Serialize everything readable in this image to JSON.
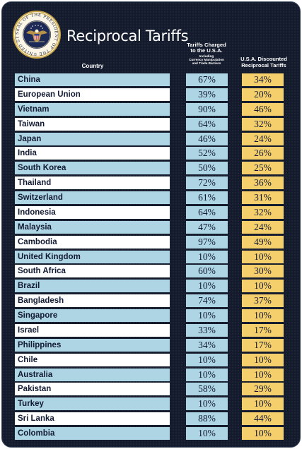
{
  "header": {
    "title": "Reciprocal Tariffs",
    "seal_text": "SEAL OF THE PRESIDENT OF THE UNITED STATES",
    "col_country": "Country",
    "col_charged_line1": "Tariffs Charged",
    "col_charged_line2": "to the U.S.A.",
    "col_charged_sub1": "Including",
    "col_charged_sub2": "Currency Manipulation",
    "col_charged_sub3": "and Trade Barriers",
    "col_disc_line1": "U.S.A. Discounted",
    "col_disc_line2": "Reciprocal Tariffs"
  },
  "colors": {
    "background": "#141b2d",
    "country_blue": "#aed5e4",
    "country_white": "#ffffff",
    "charged_cell": "#aed5e4",
    "discounted_cell": "#f5cf6c"
  },
  "rows": [
    {
      "country": "China",
      "charged": "67%",
      "discounted": "34%"
    },
    {
      "country": "European Union",
      "charged": "39%",
      "discounted": "20%"
    },
    {
      "country": "Vietnam",
      "charged": "90%",
      "discounted": "46%"
    },
    {
      "country": "Taiwan",
      "charged": "64%",
      "discounted": "32%"
    },
    {
      "country": "Japan",
      "charged": "46%",
      "discounted": "24%"
    },
    {
      "country": "India",
      "charged": "52%",
      "discounted": "26%"
    },
    {
      "country": "South Korea",
      "charged": "50%",
      "discounted": "25%"
    },
    {
      "country": "Thailand",
      "charged": "72%",
      "discounted": "36%"
    },
    {
      "country": "Switzerland",
      "charged": "61%",
      "discounted": "31%"
    },
    {
      "country": "Indonesia",
      "charged": "64%",
      "discounted": "32%"
    },
    {
      "country": "Malaysia",
      "charged": "47%",
      "discounted": "24%"
    },
    {
      "country": "Cambodia",
      "charged": "97%",
      "discounted": "49%"
    },
    {
      "country": "United Kingdom",
      "charged": "10%",
      "discounted": "10%"
    },
    {
      "country": "South Africa",
      "charged": "60%",
      "discounted": "30%"
    },
    {
      "country": "Brazil",
      "charged": "10%",
      "discounted": "10%"
    },
    {
      "country": "Bangladesh",
      "charged": "74%",
      "discounted": "37%"
    },
    {
      "country": "Singapore",
      "charged": "10%",
      "discounted": "10%"
    },
    {
      "country": "Israel",
      "charged": "33%",
      "discounted": "17%"
    },
    {
      "country": "Philippines",
      "charged": "34%",
      "discounted": "17%"
    },
    {
      "country": "Chile",
      "charged": "10%",
      "discounted": "10%"
    },
    {
      "country": "Australia",
      "charged": "10%",
      "discounted": "10%"
    },
    {
      "country": "Pakistan",
      "charged": "58%",
      "discounted": "29%"
    },
    {
      "country": "Turkey",
      "charged": "10%",
      "discounted": "10%"
    },
    {
      "country": "Sri Lanka",
      "charged": "88%",
      "discounted": "44%"
    },
    {
      "country": "Colombia",
      "charged": "10%",
      "discounted": "10%"
    }
  ]
}
